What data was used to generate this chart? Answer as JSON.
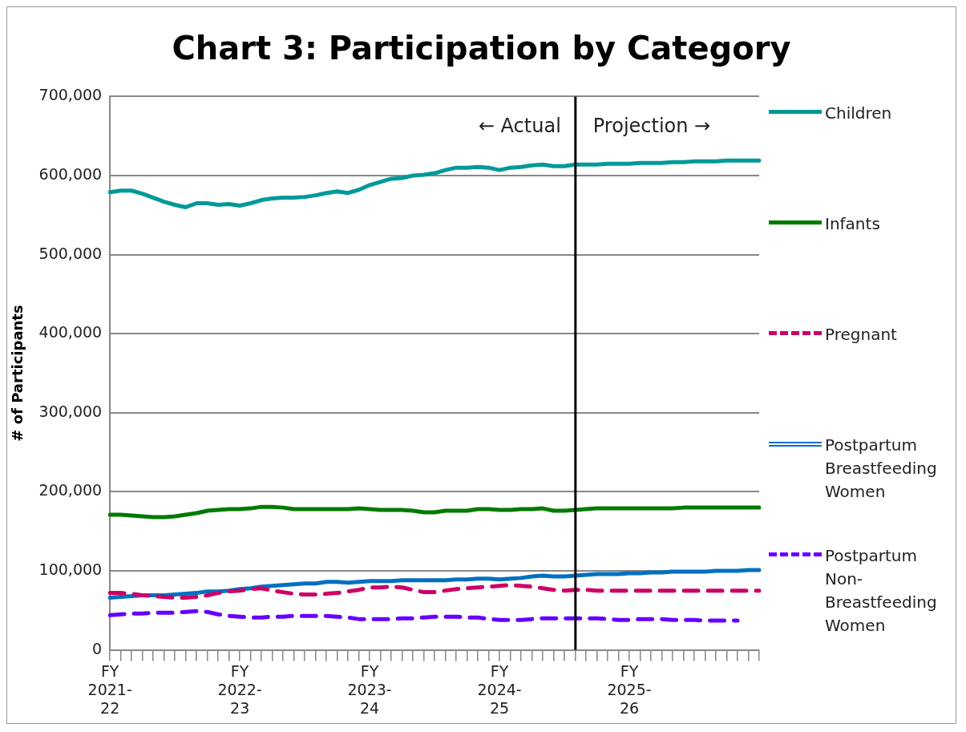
{
  "chart_data": {
    "type": "line",
    "title": "Chart 3: Participation by Category",
    "ylabel": "# of Participants",
    "categories": [
      "FY 2021-22",
      null,
      null,
      null,
      null,
      null,
      null,
      null,
      null,
      null,
      null,
      null,
      "FY 2022-23",
      null,
      null,
      null,
      null,
      null,
      null,
      null,
      null,
      null,
      null,
      null,
      "FY 2023-24",
      null,
      null,
      null,
      null,
      null,
      null,
      null,
      null,
      null,
      null,
      null,
      "FY 2024-25",
      null,
      null,
      null,
      null,
      null,
      null,
      null,
      null,
      null,
      null,
      null,
      "FY 2025-26",
      null,
      null,
      null,
      null,
      null,
      null,
      null,
      null,
      null,
      null,
      null,
      null
    ],
    "ylim": [
      0,
      700000
    ],
    "yticks": [
      {
        "value": 0,
        "label": "0"
      },
      {
        "value": 100000,
        "label": "100,000"
      },
      {
        "value": 200000,
        "label": "200,000"
      },
      {
        "value": 300000,
        "label": "300,000"
      },
      {
        "value": 400000,
        "label": "400,000"
      },
      {
        "value": 500000,
        "label": "500,000"
      },
      {
        "value": 600000,
        "label": "600,000"
      },
      {
        "value": 700000,
        "label": "700,000"
      }
    ],
    "grid": "y",
    "legend": "right",
    "marker": "none",
    "annotations": [
      "← Actual",
      "Projection →"
    ],
    "series": [
      {
        "name": "Children",
        "color": "#009999",
        "line_style": "solid",
        "values": [
          579000,
          581000,
          581000,
          577000,
          572000,
          567000,
          563000,
          560000,
          565000,
          565000,
          563000,
          564000,
          562000,
          565000,
          569000,
          571000,
          572000,
          572000,
          573000,
          575000,
          578000,
          580000,
          578000,
          582000,
          588000,
          592000,
          596000,
          597000,
          600000,
          601000,
          603000,
          607000,
          610000,
          610000,
          611000,
          610000,
          607000,
          610000,
          611000,
          613000,
          614000,
          612000,
          612000,
          614000,
          614000,
          614000,
          615000,
          615000,
          615000,
          616000,
          616000,
          616000,
          617000,
          617000,
          618000,
          618000,
          618000,
          619000,
          619000,
          619000,
          619000
        ]
      },
      {
        "name": "Infants",
        "color": "#007a00",
        "line_style": "solid",
        "values": [
          171000,
          171000,
          170000,
          169000,
          168000,
          168000,
          169000,
          171000,
          173000,
          176000,
          177000,
          178000,
          178000,
          179000,
          181000,
          181000,
          180000,
          178000,
          178000,
          178000,
          178000,
          178000,
          178000,
          179000,
          178000,
          177000,
          177000,
          177000,
          176000,
          174000,
          174000,
          176000,
          176000,
          176000,
          178000,
          178000,
          177000,
          177000,
          178000,
          178000,
          179000,
          176000,
          176000,
          177000,
          178000,
          179000,
          179000,
          179000,
          179000,
          179000,
          179000,
          179000,
          179000,
          180000,
          180000,
          180000,
          180000,
          180000,
          180000,
          180000,
          180000
        ]
      },
      {
        "name": "Pregnant",
        "color": "#cc0066",
        "line_style": "dashed",
        "values": [
          72000,
          72000,
          71000,
          69000,
          68000,
          67000,
          66000,
          66000,
          67000,
          69000,
          72000,
          74000,
          75000,
          77000,
          78000,
          75000,
          73000,
          71000,
          70000,
          70000,
          71000,
          72000,
          74000,
          76000,
          79000,
          79000,
          80000,
          79000,
          76000,
          73000,
          73000,
          75000,
          77000,
          78000,
          79000,
          80000,
          81000,
          82000,
          81000,
          80000,
          78000,
          76000,
          75000,
          76000,
          76000,
          75000,
          75000,
          75000,
          75000,
          75000,
          75000,
          75000,
          75000,
          75000,
          75000,
          75000,
          75000,
          75000,
          75000,
          75000,
          75000
        ]
      },
      {
        "name": "Postpartum Breastfeeding Women",
        "color": "#0070c0",
        "line_style": "solid",
        "values": [
          66000,
          67000,
          68000,
          69000,
          69000,
          69000,
          70000,
          71000,
          72000,
          74000,
          74000,
          75000,
          77000,
          78000,
          80000,
          81000,
          82000,
          83000,
          84000,
          84000,
          86000,
          86000,
          85000,
          86000,
          87000,
          87000,
          87000,
          88000,
          88000,
          88000,
          88000,
          88000,
          89000,
          89000,
          90000,
          90000,
          89000,
          90000,
          91000,
          93000,
          94000,
          93000,
          93000,
          94000,
          95000,
          96000,
          96000,
          96000,
          97000,
          97000,
          98000,
          98000,
          99000,
          99000,
          99000,
          99000,
          100000,
          100000,
          100000,
          101000,
          101000
        ]
      },
      {
        "name": "Postpartum Non-Breastfeeding Women",
        "color": "#6600ff",
        "line_style": "dashed",
        "values": [
          44000,
          45000,
          46000,
          46000,
          47000,
          47000,
          47000,
          48000,
          49000,
          48000,
          45000,
          43000,
          42000,
          41000,
          41000,
          42000,
          42000,
          43000,
          43000,
          43000,
          43000,
          42000,
          41000,
          39000,
          39000,
          39000,
          39000,
          40000,
          40000,
          41000,
          42000,
          42000,
          42000,
          41000,
          41000,
          39000,
          38000,
          38000,
          38000,
          39000,
          40000,
          40000,
          40000,
          40000,
          40000,
          40000,
          39000,
          38000,
          38000,
          39000,
          39000,
          39000,
          38000,
          38000,
          38000,
          37000,
          37000,
          37000,
          37000,
          null,
          null
        ]
      }
    ]
  }
}
